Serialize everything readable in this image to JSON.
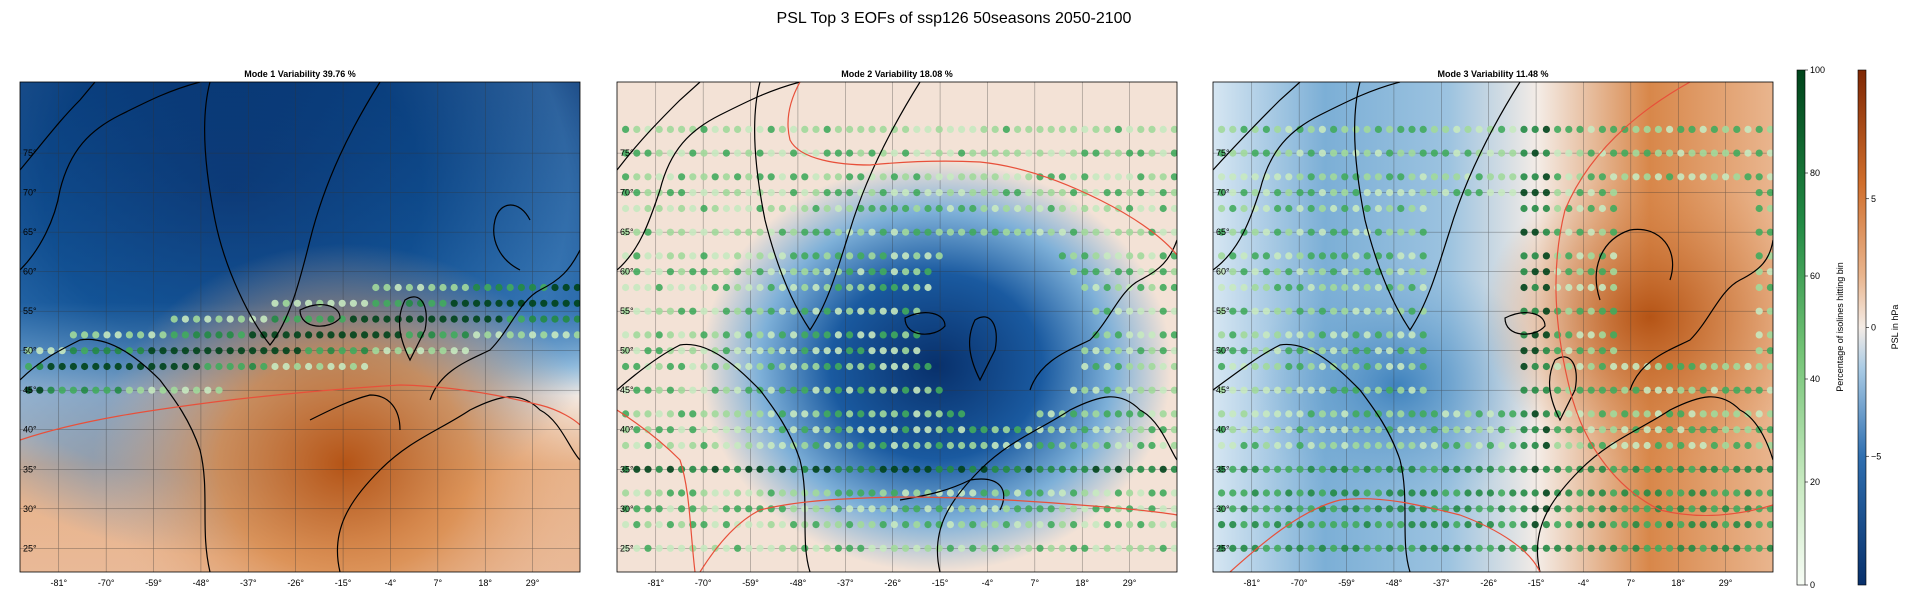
{
  "figure": {
    "title": "PSL Top 3 EOFs of ssp126 50seasons 2050-2100"
  },
  "panels": [
    {
      "title": "Mode 1 Variability 39.76 %",
      "pattern": "north-negative / south-positive dipole",
      "red_contour_note": "zero line of EOF pattern",
      "dot_band_latitudes": [
        45,
        48,
        50,
        52,
        54,
        56,
        58
      ]
    },
    {
      "title": "Mode 2 Variability 18.08 %",
      "pattern": "central negative monopole with positive surrounding",
      "red_contour_note": "zero line of EOF pattern",
      "dot_band_latitudes": [
        25,
        28,
        30,
        32,
        35,
        38,
        40,
        42,
        45,
        48,
        50,
        52,
        55,
        58,
        60,
        62,
        65,
        68,
        70,
        72,
        75,
        78
      ]
    },
    {
      "title": "Mode 3 Variability 11.48 %",
      "pattern": "west negative / east positive dipole",
      "red_contour_note": "zero line of EOF pattern",
      "dot_band_latitudes": [
        25,
        28,
        30,
        32,
        35,
        38,
        40,
        42,
        45,
        48,
        50,
        52,
        55,
        58,
        60,
        62,
        65,
        68,
        70,
        72,
        75,
        78
      ]
    }
  ],
  "axes": {
    "lat_ticks": [
      "75°",
      "70°",
      "65°",
      "60°",
      "55°",
      "50°",
      "45°",
      "40°",
      "35°",
      "30°",
      "25°"
    ],
    "lon_ticks": [
      "-81°",
      "-70°",
      "-59°",
      "-48°",
      "-37°",
      "-26°",
      "-15°",
      "-4°",
      "7°",
      "18°",
      "29°"
    ]
  },
  "colorbar_isolines": {
    "label": "Percentage of isolines hitting bin",
    "ticks": [
      "100",
      "80",
      "60",
      "40",
      "20",
      "0"
    ],
    "colormap": "Greens"
  },
  "colorbar_psl": {
    "label": "PSL in hPa",
    "ticks": [
      "5",
      "0",
      "−5"
    ],
    "colormap": "RdBu_r-like (blue negative, brown positive)"
  },
  "colors": {
    "neg_strong": "#08306b",
    "neg_mid": "#3a7ab8",
    "neutral": "#f4ece6",
    "pos_mid": "#d98a4a",
    "pos_strong": "#7f2704",
    "contour": "#e8503a",
    "coast": "#000000",
    "dot_light": "#c7e9c0",
    "dot_mid": "#41ab5d",
    "dot_dark": "#00441b"
  }
}
